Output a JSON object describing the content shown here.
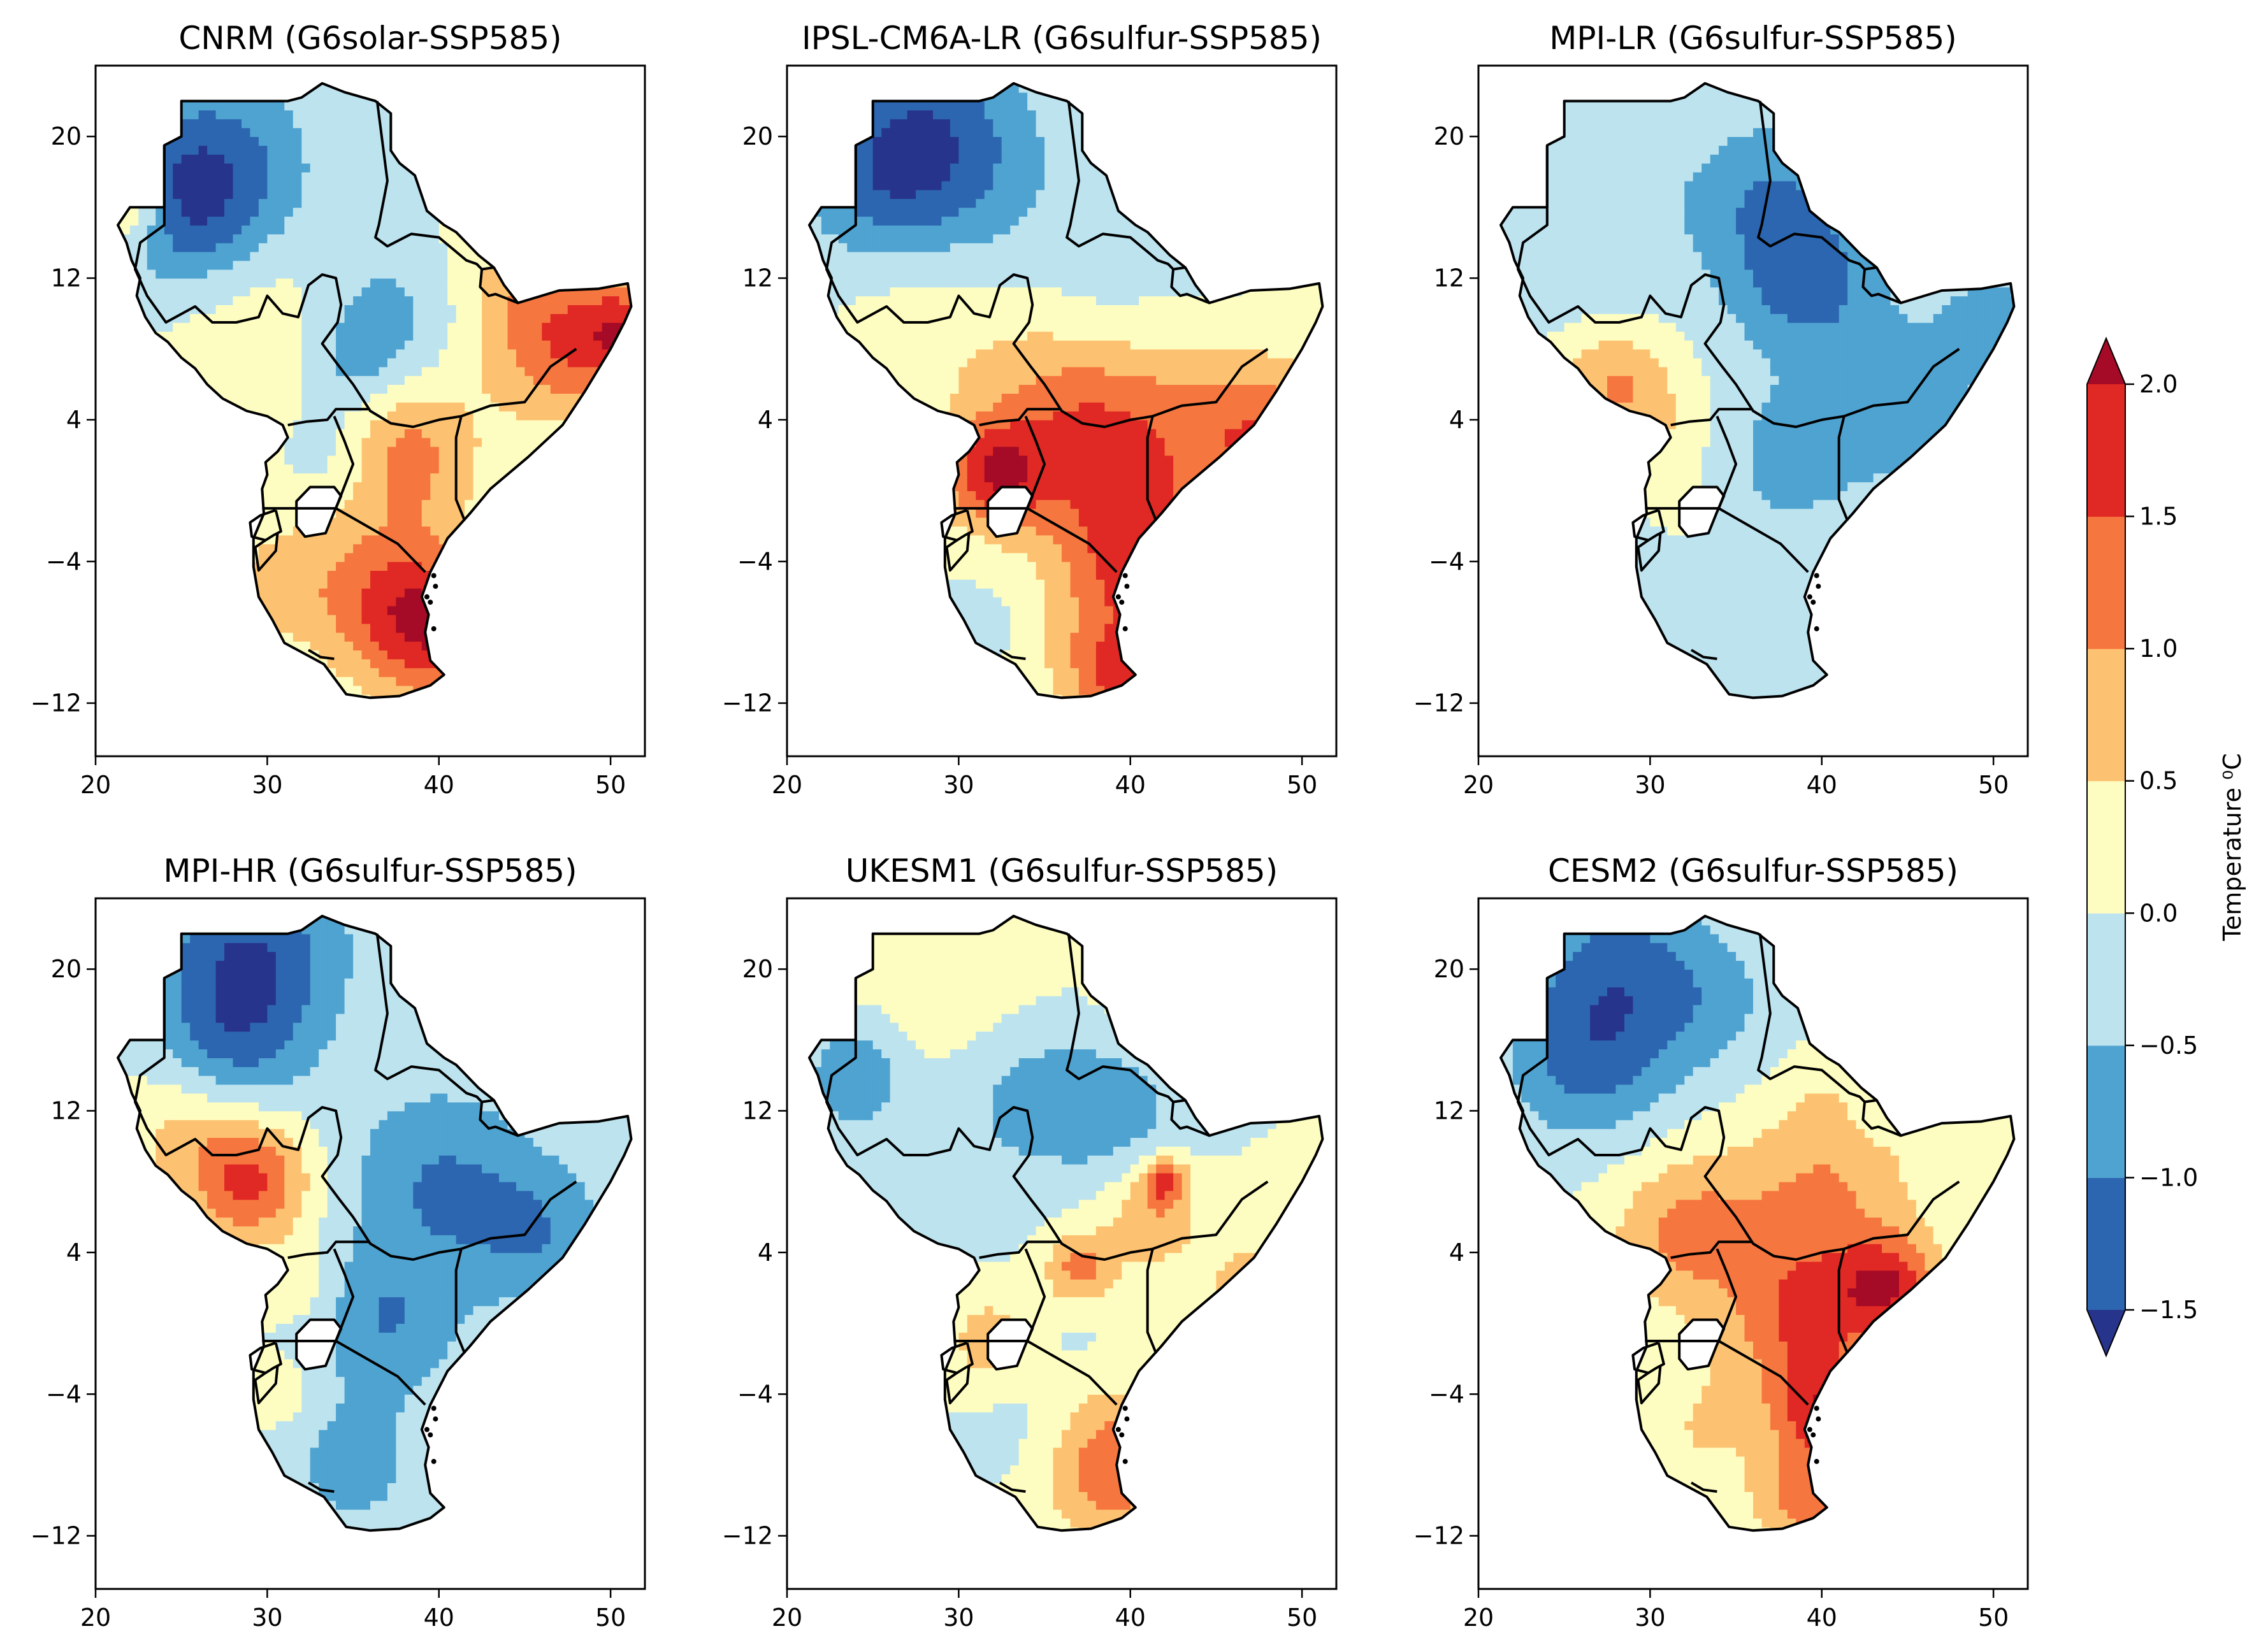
{
  "chart_data": [
    {
      "type": "heatmap",
      "title": "CNRM (G6solar-SSP585)",
      "xlim": [
        20,
        52
      ],
      "ylim": [
        -15,
        24
      ],
      "xticks": [
        20,
        30,
        40,
        50
      ],
      "yticks": [
        20,
        12,
        4,
        -4,
        -12
      ],
      "blobs": [
        [
          27,
          18,
          -1.2,
          4
        ],
        [
          25,
          16,
          -0.8,
          3
        ],
        [
          22,
          16,
          1.2,
          1.5
        ],
        [
          37,
          10,
          -0.7,
          3
        ],
        [
          35,
          7,
          -0.6,
          2
        ],
        [
          34,
          2,
          -0.5,
          2
        ],
        [
          38,
          2,
          1.2,
          3
        ],
        [
          40,
          -8,
          1.6,
          3
        ],
        [
          37,
          -6,
          1.0,
          3
        ],
        [
          47,
          8,
          1.2,
          3
        ],
        [
          51,
          9,
          1.5,
          2
        ],
        [
          30,
          10,
          0.4,
          4
        ],
        [
          45,
          12,
          0.6,
          3
        ],
        [
          31,
          -5,
          0.6,
          3
        ]
      ]
    },
    {
      "type": "heatmap",
      "title": "IPSL-CM6A-LR (G6sulfur-SSP585)",
      "xlim": [
        20,
        52
      ],
      "ylim": [
        -15,
        24
      ],
      "xticks": [
        20,
        30,
        40,
        50
      ],
      "yticks": [
        20,
        12,
        4,
        -4,
        -12
      ],
      "blobs": [
        [
          28,
          20,
          -1.4,
          4
        ],
        [
          25,
          17,
          -0.6,
          3
        ],
        [
          33,
          16,
          -0.3,
          4
        ],
        [
          39,
          10,
          -0.5,
          3
        ],
        [
          45,
          13,
          -0.2,
          2
        ],
        [
          38,
          3,
          1.7,
          5
        ],
        [
          32,
          1,
          1.4,
          2
        ],
        [
          41,
          -4,
          1.2,
          3
        ],
        [
          33,
          -7,
          -0.3,
          3
        ],
        [
          38,
          -9,
          0.8,
          3
        ],
        [
          28,
          10,
          0.3,
          3
        ],
        [
          48,
          3,
          1.3,
          3
        ],
        [
          40,
          -11,
          1.2,
          2
        ]
      ]
    },
    {
      "type": "heatmap",
      "title": "MPI-LR (G6sulfur-SSP585)",
      "xlim": [
        20,
        52
      ],
      "ylim": [
        -15,
        24
      ],
      "xticks": [
        20,
        30,
        40,
        50
      ],
      "yticks": [
        20,
        12,
        4,
        -4,
        -12
      ],
      "blobs": [
        [
          39,
          12,
          -1.2,
          3
        ],
        [
          37,
          17,
          -0.8,
          3
        ],
        [
          28,
          15,
          -0.4,
          5
        ],
        [
          45,
          5,
          -0.7,
          4
        ],
        [
          38,
          2,
          -0.6,
          3
        ],
        [
          28,
          6,
          1.1,
          2.5
        ],
        [
          31,
          3,
          0.3,
          2
        ],
        [
          33,
          -2,
          0.2,
          2
        ],
        [
          35,
          -7,
          -0.4,
          4
        ],
        [
          24,
          12,
          -0.1,
          2
        ],
        [
          50,
          10,
          -0.6,
          2
        ]
      ]
    },
    {
      "type": "heatmap",
      "title": "MPI-HR (G6sulfur-SSP585)",
      "xlim": [
        20,
        52
      ],
      "ylim": [
        -15,
        24
      ],
      "xticks": [
        20,
        30,
        40,
        50
      ],
      "yticks": [
        20,
        12,
        4,
        -4,
        -12
      ],
      "blobs": [
        [
          29,
          21,
          -1.4,
          4
        ],
        [
          28,
          16,
          -0.8,
          3
        ],
        [
          29,
          8,
          1.6,
          2.5
        ],
        [
          25,
          11,
          0.6,
          2.5
        ],
        [
          40,
          8,
          -1.0,
          4
        ],
        [
          37,
          0,
          -0.9,
          3
        ],
        [
          46,
          5,
          -0.8,
          3
        ],
        [
          32,
          2,
          0.4,
          1.5
        ],
        [
          31,
          -4,
          0.4,
          1.5
        ],
        [
          35,
          -8,
          -0.7,
          3
        ]
      ]
    },
    {
      "type": "heatmap",
      "title": "UKESM1 (G6sulfur-SSP585)",
      "xlim": [
        20,
        52
      ],
      "ylim": [
        -15,
        24
      ],
      "xticks": [
        20,
        30,
        40,
        50
      ],
      "yticks": [
        20,
        12,
        4,
        -4,
        -12
      ],
      "blobs": [
        [
          30,
          19,
          0.3,
          4
        ],
        [
          24,
          14,
          -1.0,
          2
        ],
        [
          34,
          13,
          -0.6,
          3
        ],
        [
          39,
          12,
          -0.7,
          3
        ],
        [
          41,
          6,
          0.8,
          2
        ],
        [
          42,
          8,
          1.4,
          1
        ],
        [
          37,
          3,
          1.2,
          1.5
        ],
        [
          36,
          0,
          -0.2,
          2
        ],
        [
          32,
          -1,
          0.8,
          2
        ],
        [
          39,
          -8,
          1.4,
          3
        ],
        [
          34,
          -6,
          -0.3,
          2.5
        ],
        [
          47,
          2,
          0.6,
          3
        ],
        [
          42,
          19,
          0.9,
          2
        ],
        [
          29,
          8,
          -0.3,
          3
        ]
      ]
    },
    {
      "type": "heatmap",
      "title": "CESM2 (G6sulfur-SSP585)",
      "xlim": [
        20,
        52
      ],
      "ylim": [
        -15,
        24
      ],
      "xticks": [
        20,
        30,
        40,
        50
      ],
      "yticks": [
        20,
        12,
        4,
        -4,
        -12
      ],
      "blobs": [
        [
          28,
          19,
          -1.3,
          4
        ],
        [
          26,
          14,
          -0.7,
          3
        ],
        [
          34,
          18,
          -0.4,
          3
        ],
        [
          40,
          7,
          1.0,
          4
        ],
        [
          32,
          5,
          1.1,
          3
        ],
        [
          39,
          0,
          1.4,
          3
        ],
        [
          44,
          2,
          1.6,
          2
        ],
        [
          40,
          -5,
          1.6,
          2
        ],
        [
          33,
          -6,
          0.5,
          3
        ],
        [
          39,
          -10,
          1.2,
          2
        ],
        [
          41,
          12,
          0.3,
          2
        ],
        [
          43,
          12,
          -0.4,
          1.2
        ]
      ]
    }
  ],
  "colorbar": {
    "label": "Temperature ⁰C",
    "levels": [
      -1.5,
      -1.0,
      -0.5,
      0.0,
      0.5,
      1.0,
      1.5,
      2.0
    ],
    "tick_labels": [
      "−1.5",
      "−1.0",
      "−0.5",
      "0.0",
      "0.5",
      "1.0",
      "1.5",
      "2.0"
    ],
    "colors": [
      "#2c66b0",
      "#4fa3d1",
      "#bde3ef",
      "#fefdc1",
      "#fdc271",
      "#f6763f",
      "#e02824"
    ],
    "under_color": "#27348b",
    "over_color": "#a50a26",
    "extend": "both"
  }
}
